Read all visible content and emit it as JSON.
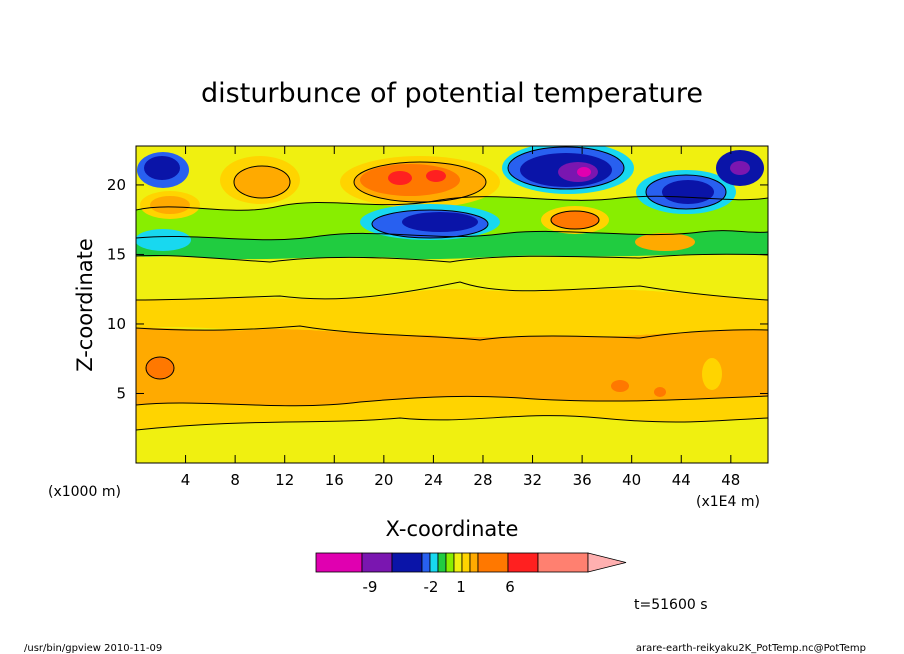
{
  "chart_data": {
    "type": "heatmap",
    "title": "disturbunce of potential temperature",
    "xlabel": "X-coordinate",
    "ylabel": "Z-coordinate",
    "x_unit_left": "(x1000 m)",
    "x_unit_right": "(x1E4 m)",
    "x_ticks": [
      4,
      8,
      12,
      16,
      20,
      24,
      28,
      32,
      36,
      40,
      44,
      48
    ],
    "y_ticks": [
      5,
      10,
      15,
      20
    ],
    "xlim": [
      0,
      51
    ],
    "ylim": [
      0,
      22.8
    ],
    "colorbar": {
      "colors": [
        "#e000b0",
        "#7a16b0",
        "#0a14a8",
        "#2860f0",
        "#18d8f0",
        "#20cc40",
        "#88ee00",
        "#f0f010",
        "#ffd400",
        "#ffaa00",
        "#ff7800",
        "#ff2020",
        "#ff8070",
        "#ffb0b0"
      ],
      "tick_labels": [
        "-9",
        "-2",
        "1",
        "6"
      ]
    },
    "annotation": "t=51600 s",
    "bands": [
      {
        "z": [
          0.0,
          2.5
        ],
        "level": "yellow"
      },
      {
        "z": [
          2.5,
          4.0
        ],
        "level": "gold"
      },
      {
        "z": [
          4.0,
          9.8
        ],
        "level": "orange"
      },
      {
        "z": [
          9.8,
          12.0
        ],
        "level": "gold"
      },
      {
        "z": [
          12.0,
          15.0
        ],
        "level": "yellow"
      },
      {
        "z": [
          15.0,
          17.0
        ],
        "level": "green"
      },
      {
        "z": [
          17.0,
          22.8
        ],
        "level": "mixed"
      }
    ]
  },
  "footer": {
    "left": "/usr/bin/gpview  2010-11-09",
    "right": "arare-earth-reikyaku2K_PotTemp.nc@PotTemp"
  }
}
